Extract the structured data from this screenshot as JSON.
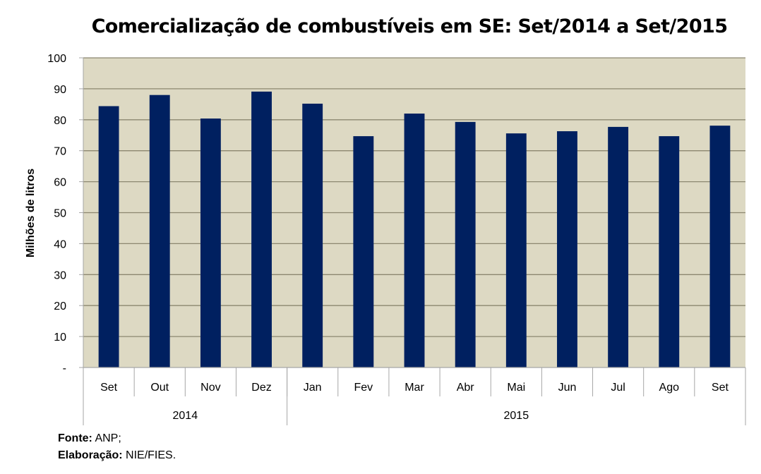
{
  "chart_data": {
    "type": "bar",
    "title": "Comercialização de combustíveis em SE: Set/2014 a Set/2015",
    "xlabel": "",
    "ylabel": "Milhões de litros",
    "ylim": [
      0,
      100
    ],
    "yticks": [
      0,
      10,
      20,
      30,
      40,
      50,
      60,
      70,
      80,
      90,
      100
    ],
    "ytick_labels": [
      "-",
      "10",
      "20",
      "30",
      "40",
      "50",
      "60",
      "70",
      "80",
      "90",
      "100"
    ],
    "grid": true,
    "legend": "none",
    "categories": [
      "Set",
      "Out",
      "Nov",
      "Dez",
      "Jan",
      "Fev",
      "Mar",
      "Abr",
      "Mai",
      "Jun",
      "Jul",
      "Ago",
      "Set"
    ],
    "groups": [
      {
        "label": "2014",
        "count": 4
      },
      {
        "label": "2015",
        "count": 9
      }
    ],
    "series": [
      {
        "name": "Comercialização",
        "values": [
          84.4,
          88.0,
          80.4,
          89.1,
          85.2,
          74.7,
          82.0,
          79.3,
          75.6,
          76.3,
          77.7,
          74.7,
          78.1
        ]
      }
    ],
    "colors": {
      "bar": "#002060",
      "plot_bg": "#DDD9C3",
      "grid": "#8C8770",
      "axis": "#A6A6A6"
    }
  },
  "notes": {
    "source_label": "Fonte:",
    "source_value": " ANP;",
    "made_by_label": "Elaboração:",
    "made_by_value": " NIE/FIES."
  }
}
